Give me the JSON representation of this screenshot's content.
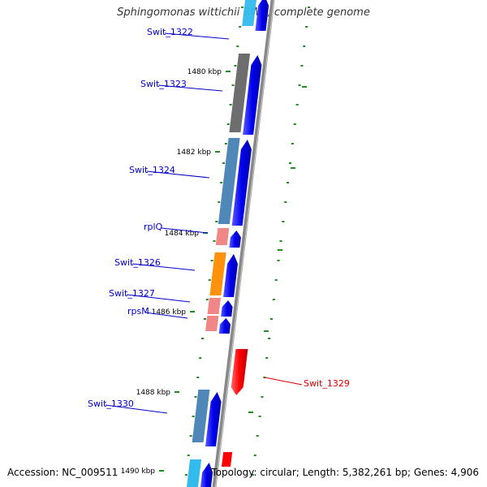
{
  "title": "Sphingomonas wittichii RW1, complete genome",
  "footer": {
    "accession": "Accession: NC_009511",
    "summary": "Topology: circular; Length: 5,382,261 bp; Genes: 4,906"
  },
  "colors": {
    "backbone": "#888888",
    "cds_forward": "#0000ee",
    "cds_reverse": "#ff0000",
    "tick": "#228b22",
    "label_forward": "#0000cc",
    "label_reverse": "#dd0000"
  },
  "kbp_labels": [
    "1480 kbp",
    "1482 kbp",
    "1484 kbp",
    "1486 kbp",
    "1488 kbp",
    "1490 kbp"
  ],
  "genes": [
    {
      "name": "Swit_1322",
      "strand": "+",
      "feature_color": "#33bbee"
    },
    {
      "name": "Swit_1323",
      "strand": "+",
      "feature_color": "#666666"
    },
    {
      "name": "Swit_1324",
      "strand": "+",
      "feature_color": "#4682b4"
    },
    {
      "name": "rplQ",
      "strand": "+",
      "feature_color": "#f08080"
    },
    {
      "name": "Swit_1326",
      "strand": "+",
      "feature_color": "#ff8c00"
    },
    {
      "name": "Swit_1327",
      "strand": "+",
      "feature_color": "#f08080"
    },
    {
      "name": "rpsM",
      "strand": "+",
      "feature_color": "#f08080"
    },
    {
      "name": "Swit_1329",
      "strand": "-",
      "feature_color": "#ff0000"
    },
    {
      "name": "Swit_1330",
      "strand": "+",
      "feature_color": "#4682b4"
    }
  ]
}
